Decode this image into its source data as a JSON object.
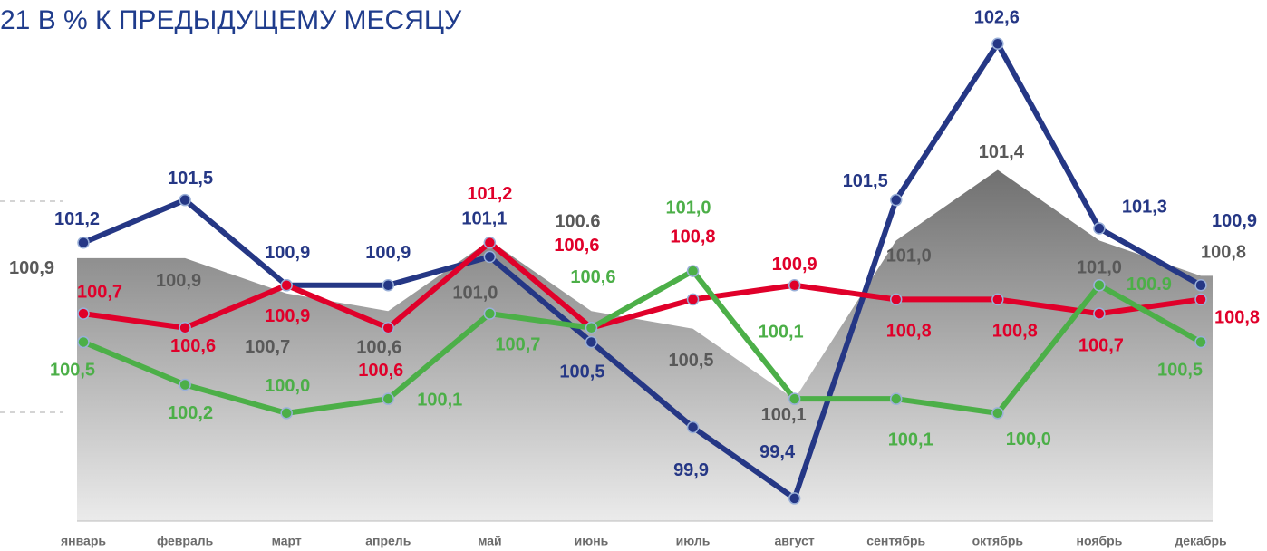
{
  "chart_data": {
    "type": "line",
    "title": "21  В % К ПРЕДЫДУЩЕМУ МЕСЯЦУ",
    "categories": [
      "январь",
      "февраль",
      "март",
      "апрель",
      "май",
      "июнь",
      "июль",
      "август",
      "сентябрь",
      "октябрь",
      "ноябрь",
      "декабрь"
    ],
    "ylim": [
      99.24,
      102.78
    ],
    "y2lim": [
      99.41,
      102.26
    ],
    "series": [
      {
        "type": "area",
        "axis": "y2",
        "color": "#8a8a8a",
        "label_color": "#595959",
        "values": [
          100.9,
          100.9,
          100.7,
          100.6,
          101.0,
          100.6,
          100.5,
          100.1,
          101.0,
          101.4,
          101.0,
          100.8
        ],
        "value_labels": [
          "100,9",
          "100,9",
          "100,7",
          "100,6",
          "101,0",
          "100.6",
          "100,5",
          "100,1",
          "101,0",
          "101,4",
          "101,0",
          "100,8"
        ]
      },
      {
        "type": "line",
        "color": "#253785",
        "label_color": "#253785",
        "values": [
          101.2,
          101.5,
          100.9,
          100.9,
          101.1,
          100.5,
          99.9,
          99.4,
          101.5,
          102.6,
          101.3,
          100.9
        ],
        "value_labels": [
          "101,2",
          "101,5",
          "100,9",
          "100,9",
          "101,1",
          "100,5",
          "99,9",
          "99,4",
          "101,5",
          "102,6",
          "101,3",
          "100,9"
        ]
      },
      {
        "type": "line",
        "color": "#e0002a",
        "label_color": "#e0002a",
        "values": [
          100.7,
          100.6,
          100.9,
          100.6,
          101.2,
          100.6,
          100.8,
          100.9,
          100.8,
          100.8,
          100.7,
          100.8
        ],
        "value_labels": [
          "100,7",
          "100,6",
          "100,9",
          "100,6",
          "101,2",
          "100,6",
          "100,8",
          "100,9",
          "100,8",
          "100,8",
          "100,7",
          "100,8"
        ]
      },
      {
        "type": "line",
        "color": "#4caf48",
        "label_color": "#4caf48",
        "values": [
          100.5,
          100.2,
          100.0,
          100.1,
          100.7,
          100.6,
          101.0,
          100.1,
          100.1,
          100.0,
          100.9,
          100.5
        ],
        "value_labels": [
          "100,5",
          "100,2",
          "100,0",
          "100,1",
          "100,7",
          "100,6",
          "101,0",
          "100,1",
          "100,1",
          "100,0",
          "100.9",
          "100,5"
        ]
      }
    ]
  }
}
